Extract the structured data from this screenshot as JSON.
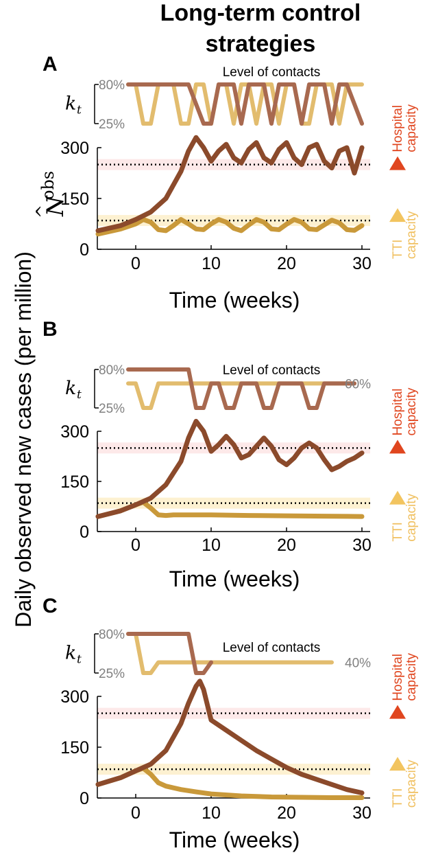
{
  "figure": {
    "title_line1": "Long-term control",
    "title_line2": "strategies",
    "ylabel": "Daily observed new cases (per million)",
    "n_symbol": "N",
    "n_hat": "^",
    "n_super": "obs",
    "kt_symbol": "k",
    "kt_sub": "t",
    "hospital_line1": "Hospital",
    "hospital_line2": "capacity",
    "tti_line1": "TTI",
    "tti_line2": "capacity"
  },
  "colors": {
    "dark": "#8b4a2b",
    "gold": "#c9993a",
    "dark_k": "#a8694f",
    "light_k": "#e2bc6e",
    "hospital": "#e0461f",
    "tti": "#f2c45f",
    "gray": "#808080"
  },
  "panels": [
    {
      "label": "A",
      "contacts_label": "Level of contacts",
      "k_high": "80%",
      "k_low": "25%",
      "k_end_label": "",
      "xlabel": "Time (weeks)",
      "chart_data": {
        "type": "line",
        "x_ticks": [
          0,
          10,
          20,
          30
        ],
        "x_tick_labels": [
          "0",
          "10",
          "20",
          "30"
        ],
        "y_ticks": [
          0,
          150,
          300
        ],
        "y_tick_labels": [
          "0",
          "150",
          "300"
        ],
        "xlim": [
          -5,
          30
        ],
        "ylim": [
          0,
          300
        ],
        "hospital_capacity": 250,
        "tti_capacity": 85,
        "k_range": [
          25,
          80
        ],
        "series": [
          {
            "name": "dark",
            "x": [
              -5,
              -2,
              0,
              2,
              4,
              6,
              7,
              8,
              9,
              10,
              11,
              12,
              13,
              14,
              15,
              16,
              17,
              18,
              19,
              20,
              21,
              22,
              23,
              24,
              25,
              26,
              27,
              28,
              29,
              30
            ],
            "y": [
              55,
              70,
              88,
              110,
              150,
              230,
              290,
              330,
              300,
              260,
              290,
              310,
              270,
              255,
              295,
              315,
              270,
              255,
              295,
              315,
              270,
              250,
              300,
              310,
              260,
              240,
              290,
              300,
              225,
              300
            ]
          },
          {
            "name": "gold",
            "x": [
              -5,
              -2,
              0,
              1,
              2,
              3,
              4,
              5,
              6,
              7,
              8,
              9,
              10,
              11,
              12,
              13,
              14,
              15,
              16,
              17,
              18,
              19,
              20,
              21,
              22,
              23,
              24,
              25,
              26,
              27,
              28,
              29,
              30
            ],
            "y": [
              45,
              60,
              75,
              88,
              80,
              58,
              55,
              70,
              88,
              75,
              60,
              58,
              75,
              88,
              80,
              62,
              55,
              72,
              88,
              80,
              60,
              58,
              74,
              88,
              80,
              60,
              58,
              72,
              86,
              78,
              58,
              56,
              70
            ]
          },
          {
            "name": "k_dark",
            "x": [
              -1,
              3,
              7,
              9,
              10,
              11,
              13,
              14,
              15,
              17,
              18,
              19,
              21,
              22,
              23,
              25,
              26,
              27,
              28,
              30
            ],
            "y": [
              80,
              80,
              80,
              25,
              25,
              80,
              80,
              25,
              80,
              80,
              25,
              80,
              80,
              25,
              80,
              80,
              25,
              80,
              80,
              25
            ]
          },
          {
            "name": "k_light",
            "x": [
              -1,
              0,
              1,
              2,
              3,
              4,
              5,
              6,
              7,
              8,
              9,
              10,
              11,
              12,
              13,
              14,
              15,
              16,
              17,
              18,
              19,
              20,
              21,
              22,
              23,
              24,
              25,
              26,
              27,
              28,
              29,
              30
            ],
            "y": [
              80,
              80,
              25,
              25,
              80,
              80,
              80,
              25,
              25,
              80,
              80,
              25,
              80,
              80,
              25,
              80,
              80,
              25,
              80,
              80,
              25,
              80,
              80,
              25,
              25,
              80,
              80,
              80,
              25,
              80,
              80,
              80
            ]
          }
        ]
      }
    },
    {
      "label": "B",
      "contacts_label": "Level of contacts",
      "k_high": "80%",
      "k_low": "25%",
      "k_end_label": "60%",
      "xlabel": "Time (weeks)",
      "chart_data": {
        "type": "line",
        "x_ticks": [
          0,
          10,
          20,
          30
        ],
        "x_tick_labels": [
          "0",
          "10",
          "20",
          "30"
        ],
        "y_ticks": [
          0,
          150,
          300
        ],
        "y_tick_labels": [
          "0",
          "150",
          "300"
        ],
        "xlim": [
          -5,
          30
        ],
        "ylim": [
          0,
          300
        ],
        "hospital_capacity": 250,
        "tti_capacity": 85,
        "k_range": [
          25,
          80
        ],
        "series": [
          {
            "name": "dark",
            "x": [
              -5,
              -2,
              0,
              2,
              4,
              6,
              7,
              8,
              9,
              10,
              11,
              12,
              13,
              14,
              15,
              16,
              17,
              18,
              19,
              20,
              21,
              22,
              23,
              24,
              25,
              26,
              27,
              28,
              29,
              30
            ],
            "y": [
              45,
              62,
              80,
              100,
              140,
              210,
              280,
              330,
              300,
              240,
              260,
              285,
              260,
              220,
              230,
              255,
              280,
              255,
              215,
              200,
              220,
              250,
              265,
              250,
              215,
              185,
              195,
              210,
              220,
              235
            ]
          },
          {
            "name": "gold",
            "x": [
              -5,
              -2,
              0,
              1,
              2,
              3,
              4,
              5,
              6,
              7,
              8,
              10,
              15,
              20,
              25,
              30
            ],
            "y": [
              45,
              62,
              80,
              88,
              70,
              50,
              48,
              50,
              50,
              50,
              50,
              50,
              48,
              47,
              46,
              45
            ]
          },
          {
            "name": "k_dark",
            "x": [
              -1,
              6,
              7,
              8,
              9,
              10,
              11,
              12,
              13,
              14,
              15,
              16,
              17,
              18,
              19,
              20,
              21,
              22,
              23,
              24,
              25,
              26,
              27,
              28,
              29
            ],
            "y": [
              80,
              80,
              80,
              25,
              25,
              60,
              60,
              25,
              25,
              60,
              60,
              60,
              25,
              25,
              60,
              60,
              60,
              60,
              25,
              25,
              60,
              60,
              60,
              60,
              60
            ]
          },
          {
            "name": "k_light",
            "x": [
              -1,
              0,
              1,
              2,
              3,
              4,
              29
            ],
            "y": [
              60,
              60,
              25,
              25,
              60,
              60,
              60
            ]
          }
        ]
      }
    },
    {
      "label": "C",
      "contacts_label": "Level of contacts",
      "k_high": "80%",
      "k_low": "25%",
      "k_end_label": "40%",
      "xlabel": "Time (weeks)",
      "chart_data": {
        "type": "line",
        "x_ticks": [
          0,
          10,
          20,
          30
        ],
        "x_tick_labels": [
          "0",
          "10",
          "20",
          "30"
        ],
        "y_ticks": [
          0,
          150,
          300
        ],
        "y_tick_labels": [
          "0",
          "150",
          "300"
        ],
        "xlim": [
          -5,
          30
        ],
        "ylim": [
          0,
          300
        ],
        "hospital_capacity": 250,
        "tti_capacity": 85,
        "k_range": [
          25,
          80
        ],
        "series": [
          {
            "name": "dark",
            "x": [
              -5,
              -2,
              0,
              2,
              4,
              6,
              7,
              8,
              8.5,
              9,
              10,
              12,
              14,
              16,
              18,
              20,
              22,
              24,
              26,
              28,
              30
            ],
            "y": [
              40,
              60,
              80,
              100,
              140,
              220,
              280,
              330,
              345,
              320,
              230,
              200,
              170,
              140,
              115,
              90,
              70,
              55,
              40,
              25,
              15
            ]
          },
          {
            "name": "gold",
            "x": [
              -5,
              -2,
              0,
              1,
              2,
              3,
              4,
              6,
              8,
              10,
              14,
              18,
              22,
              26,
              30
            ],
            "y": [
              40,
              60,
              80,
              88,
              70,
              45,
              35,
              25,
              18,
              12,
              6,
              3,
              2,
              1,
              1
            ]
          },
          {
            "name": "k_dark",
            "x": [
              -1,
              6,
              7,
              8,
              9,
              10
            ],
            "y": [
              80,
              80,
              80,
              25,
              25,
              40
            ]
          },
          {
            "name": "k_light",
            "x": [
              -1,
              0,
              1,
              2,
              3,
              26
            ],
            "y": [
              80,
              80,
              25,
              25,
              40,
              40
            ]
          }
        ]
      }
    }
  ]
}
